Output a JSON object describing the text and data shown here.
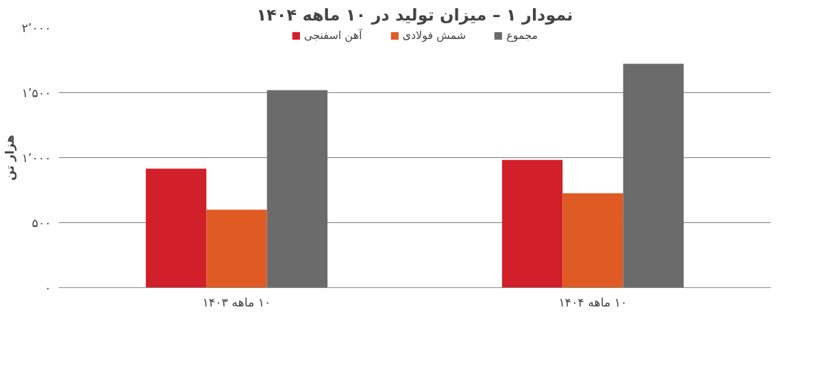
{
  "chart_data": {
    "type": "bar",
    "title": "نمودار ۱ – میزان تولید در ۱۰ ماهه ۱۴۰۴",
    "ylabel": "هزار تن",
    "categories": [
      "۱۰ ماهه ۱۴۰۳",
      "۱۰ ماهه ۱۴۰۴"
    ],
    "series": [
      {
        "name": "آهن اسفنجی",
        "color": "#d2202a",
        "values": [
          916,
          983
        ]
      },
      {
        "name": "شمش فولادی",
        "color": "#e05a24",
        "values": [
          600,
          726
        ]
      },
      {
        "name": "مجموع",
        "color": "#6b6b6b",
        "values": [
          1520,
          1722
        ]
      }
    ],
    "ylim": [
      0,
      2000
    ],
    "yticks": [
      {
        "value": 0,
        "label": "۰"
      },
      {
        "value": 500,
        "label": "۵۰۰"
      },
      {
        "value": 1000,
        "label": "۱٬۰۰۰"
      },
      {
        "value": 1500,
        "label": "۱٬۵۰۰"
      },
      {
        "value": 2000,
        "label": "۲٬۰۰۰"
      }
    ],
    "grid": "y",
    "legend": "top"
  }
}
